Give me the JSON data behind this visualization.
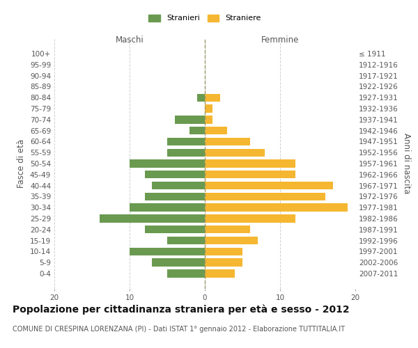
{
  "age_groups": [
    "0-4",
    "5-9",
    "10-14",
    "15-19",
    "20-24",
    "25-29",
    "30-34",
    "35-39",
    "40-44",
    "45-49",
    "50-54",
    "55-59",
    "60-64",
    "65-69",
    "70-74",
    "75-79",
    "80-84",
    "85-89",
    "90-94",
    "95-99",
    "100+"
  ],
  "birth_years": [
    "2007-2011",
    "2002-2006",
    "1997-2001",
    "1992-1996",
    "1987-1991",
    "1982-1986",
    "1977-1981",
    "1972-1976",
    "1967-1971",
    "1962-1966",
    "1957-1961",
    "1952-1956",
    "1947-1951",
    "1942-1946",
    "1937-1941",
    "1932-1936",
    "1927-1931",
    "1922-1926",
    "1917-1921",
    "1912-1916",
    "≤ 1911"
  ],
  "maschi": [
    5,
    7,
    10,
    5,
    8,
    14,
    10,
    8,
    7,
    8,
    10,
    5,
    5,
    2,
    4,
    0,
    1,
    0,
    0,
    0,
    0
  ],
  "femmine": [
    4,
    5,
    5,
    7,
    6,
    12,
    19,
    16,
    17,
    12,
    12,
    8,
    6,
    3,
    1,
    1,
    2,
    0,
    0,
    0,
    0
  ],
  "maschi_color": "#6a9a50",
  "femmine_color": "#f5b731",
  "bar_height": 0.72,
  "title": "Popolazione per cittadinanza straniera per età e sesso - 2012",
  "subtitle": "COMUNE DI CRESPINA LORENZANA (PI) - Dati ISTAT 1° gennaio 2012 - Elaborazione TUTTITALIA.IT",
  "ylabel_left": "Fasce di età",
  "ylabel_right": "Anni di nascita",
  "xlabel_maschi": "Maschi",
  "xlabel_femmine": "Femmine",
  "legend_stranieri": "Stranieri",
  "legend_straniere": "Straniere",
  "title_fontsize": 10,
  "subtitle_fontsize": 7,
  "tick_fontsize": 7.5,
  "label_fontsize": 8.5,
  "background_color": "#ffffff",
  "grid_color": "#d0d0d0"
}
